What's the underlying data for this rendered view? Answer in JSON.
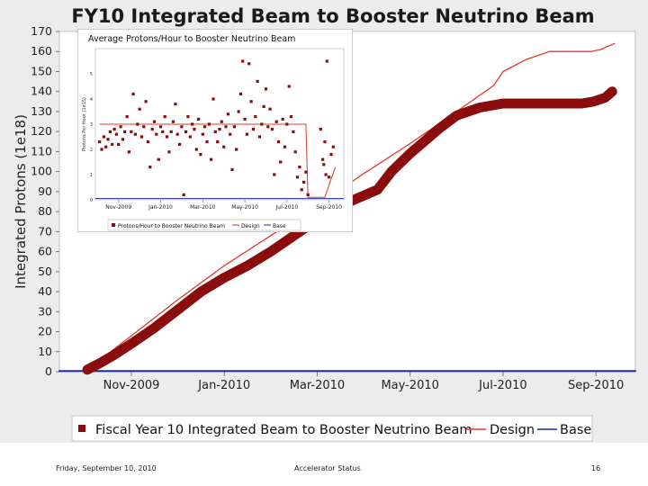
{
  "chart_data": [
    {
      "type": "line",
      "title": "FY10 Integrated Beam to Booster Neutrino Beam",
      "xlabel": "",
      "ylabel": "Integrated Protons (1e18)",
      "ylim": [
        0,
        170
      ],
      "yticks": [
        0,
        10,
        20,
        30,
        40,
        50,
        60,
        70,
        80,
        90,
        100,
        110,
        120,
        130,
        140,
        150,
        160,
        170
      ],
      "x_tick_labels": [
        "Nov-2009",
        "Jan-2010",
        "Mar-2010",
        "May-2010",
        "Jul-2010",
        "Sep-2010"
      ],
      "x_tick_months": [
        1,
        3,
        5,
        7,
        9,
        11
      ],
      "xlim_months": [
        -0.55,
        11.85
      ],
      "legend_position": "bottom",
      "series": [
        {
          "name": "Fiscal Year 10 Integrated Beam to Booster Neutrino Beam",
          "color": "#8b0c0c",
          "x_months": [
            0.05,
            0.3,
            0.6,
            1.0,
            1.5,
            2.0,
            2.5,
            3.0,
            3.5,
            4.0,
            4.5,
            5.0,
            5.5,
            6.0,
            6.3,
            6.6,
            7.0,
            7.3,
            7.6,
            8.0,
            8.5,
            9.0,
            9.5,
            10.0,
            10.4,
            10.7,
            10.95,
            11.2,
            11.35
          ],
          "values": [
            1,
            4,
            8,
            14,
            22,
            31,
            40,
            47,
            53,
            60,
            68,
            76,
            83,
            88,
            91,
            100,
            109,
            115,
            121,
            128,
            132,
            134,
            134,
            134,
            134,
            134,
            135,
            137,
            140
          ]
        },
        {
          "name": "Design",
          "color": "#e0392b",
          "x_months": [
            0.05,
            1.0,
            2.0,
            3.0,
            4.0,
            5.0,
            6.0,
            7.0,
            8.0,
            8.8,
            9.0,
            9.5,
            10.0,
            10.5,
            10.9,
            11.1,
            11.4
          ],
          "values": [
            1,
            18,
            36,
            53,
            68,
            83,
            99,
            114,
            130,
            143,
            150,
            156,
            160,
            160,
            160,
            161,
            164
          ]
        },
        {
          "name": "Base",
          "color": "#1f2a9e",
          "x_months": [
            -0.55,
            11.85
          ],
          "values": [
            0.3,
            0.3
          ]
        }
      ]
    },
    {
      "type": "scatter",
      "title": "Average Protons/Hour to Booster Neutrino Beam",
      "ylabel": "Protons Per Hour (1e15)",
      "x_tick_labels": [
        "Nov-2009",
        "Jan-2010",
        "Mar-2010",
        "May-2010",
        "Jul-2010",
        "Sep-2010"
      ],
      "x_tick_months": [
        1,
        3,
        5,
        7,
        9,
        11
      ],
      "xlim_months": [
        -0.1,
        11.7
      ],
      "ylim": [
        0,
        6
      ],
      "yticks": [
        0,
        1,
        2,
        3,
        4,
        5
      ],
      "legend_position": "bottom",
      "series": [
        {
          "name": "Protons/Hour to Booster Neutrino Beam",
          "color": "#8b0c0c",
          "points": [
            [
              0.1,
              2.3
            ],
            [
              0.2,
              2.0
            ],
            [
              0.3,
              2.5
            ],
            [
              0.4,
              2.1
            ],
            [
              0.5,
              2.4
            ],
            [
              0.6,
              2.7
            ],
            [
              0.7,
              2.2
            ],
            [
              0.8,
              2.8
            ],
            [
              0.9,
              2.6
            ],
            [
              1.0,
              2.2
            ],
            [
              1.1,
              2.9
            ],
            [
              1.2,
              2.4
            ],
            [
              1.3,
              2.7
            ],
            [
              1.4,
              3.3
            ],
            [
              1.5,
              1.9
            ],
            [
              1.6,
              2.7
            ],
            [
              1.7,
              4.2
            ],
            [
              1.8,
              2.6
            ],
            [
              1.9,
              3.0
            ],
            [
              2.0,
              3.6
            ],
            [
              2.1,
              2.5
            ],
            [
              2.2,
              2.9
            ],
            [
              2.3,
              3.9
            ],
            [
              2.4,
              2.3
            ],
            [
              2.5,
              1.3
            ],
            [
              2.6,
              2.8
            ],
            [
              2.7,
              3.1
            ],
            [
              2.8,
              2.6
            ],
            [
              2.9,
              1.6
            ],
            [
              3.0,
              2.9
            ],
            [
              3.1,
              2.7
            ],
            [
              3.2,
              3.3
            ],
            [
              3.3,
              2.5
            ],
            [
              3.4,
              1.9
            ],
            [
              3.5,
              2.7
            ],
            [
              3.6,
              3.1
            ],
            [
              3.7,
              3.8
            ],
            [
              3.8,
              2.6
            ],
            [
              3.9,
              2.2
            ],
            [
              4.0,
              2.9
            ],
            [
              4.1,
              0.2
            ],
            [
              4.2,
              2.7
            ],
            [
              4.3,
              3.3
            ],
            [
              4.4,
              2.5
            ],
            [
              4.5,
              3.0
            ],
            [
              4.6,
              2.8
            ],
            [
              4.7,
              2.0
            ],
            [
              4.8,
              3.2
            ],
            [
              4.9,
              1.8
            ],
            [
              5.0,
              2.6
            ],
            [
              5.1,
              2.9
            ],
            [
              5.2,
              2.3
            ],
            [
              5.3,
              3.0
            ],
            [
              5.4,
              1.6
            ],
            [
              5.5,
              4.0
            ],
            [
              5.6,
              2.7
            ],
            [
              5.7,
              2.3
            ],
            [
              5.8,
              2.8
            ],
            [
              5.9,
              3.1
            ],
            [
              6.0,
              2.1
            ],
            [
              6.1,
              2.9
            ],
            [
              6.2,
              3.4
            ],
            [
              6.3,
              2.6
            ],
            [
              6.4,
              1.2
            ],
            [
              6.5,
              2.9
            ],
            [
              6.6,
              2.0
            ],
            [
              6.7,
              3.5
            ],
            [
              6.8,
              4.2
            ],
            [
              6.9,
              5.5
            ],
            [
              7.0,
              3.2
            ],
            [
              7.1,
              2.6
            ],
            [
              7.2,
              5.4
            ],
            [
              7.3,
              3.9
            ],
            [
              7.4,
              2.8
            ],
            [
              7.5,
              3.3
            ],
            [
              7.6,
              4.7
            ],
            [
              7.7,
              2.5
            ],
            [
              7.8,
              3.0
            ],
            [
              7.9,
              3.7
            ],
            [
              8.0,
              4.4
            ],
            [
              8.1,
              2.9
            ],
            [
              8.2,
              3.6
            ],
            [
              8.3,
              2.8
            ],
            [
              8.4,
              1.0
            ],
            [
              8.5,
              3.1
            ],
            [
              8.6,
              2.3
            ],
            [
              8.7,
              1.5
            ],
            [
              8.8,
              3.2
            ],
            [
              8.9,
              2.1
            ],
            [
              9.0,
              3.0
            ],
            [
              9.1,
              4.5
            ],
            [
              9.2,
              3.3
            ],
            [
              9.3,
              2.7
            ],
            [
              9.4,
              1.9
            ],
            [
              9.5,
              0.9
            ],
            [
              9.6,
              1.3
            ],
            [
              9.7,
              0.4
            ],
            [
              9.8,
              0.7
            ],
            [
              9.9,
              1.1
            ],
            [
              10.0,
              0.2
            ],
            [
              10.6,
              2.8
            ],
            [
              10.7,
              1.6
            ],
            [
              10.8,
              2.3
            ],
            [
              10.9,
              5.5
            ],
            [
              11.0,
              0.9
            ],
            [
              11.1,
              1.8
            ],
            [
              11.2,
              2.1
            ],
            [
              10.75,
              1.4
            ],
            [
              10.85,
              1.0
            ]
          ]
        },
        {
          "name": "Design",
          "color": "#e0392b",
          "x_months": [
            0.1,
            9.9,
            10.0,
            10.8,
            11.3
          ],
          "values": [
            3.0,
            3.0,
            0.1,
            0.1,
            1.3
          ]
        },
        {
          "name": "Base",
          "color": "#1f2a9e",
          "x_months": [
            -0.1,
            11.7
          ],
          "values": [
            0.05,
            0.05
          ]
        }
      ]
    }
  ],
  "footer": {
    "date": "Friday, September 10, 2010",
    "center": "Accelerator Status",
    "page": "16"
  }
}
